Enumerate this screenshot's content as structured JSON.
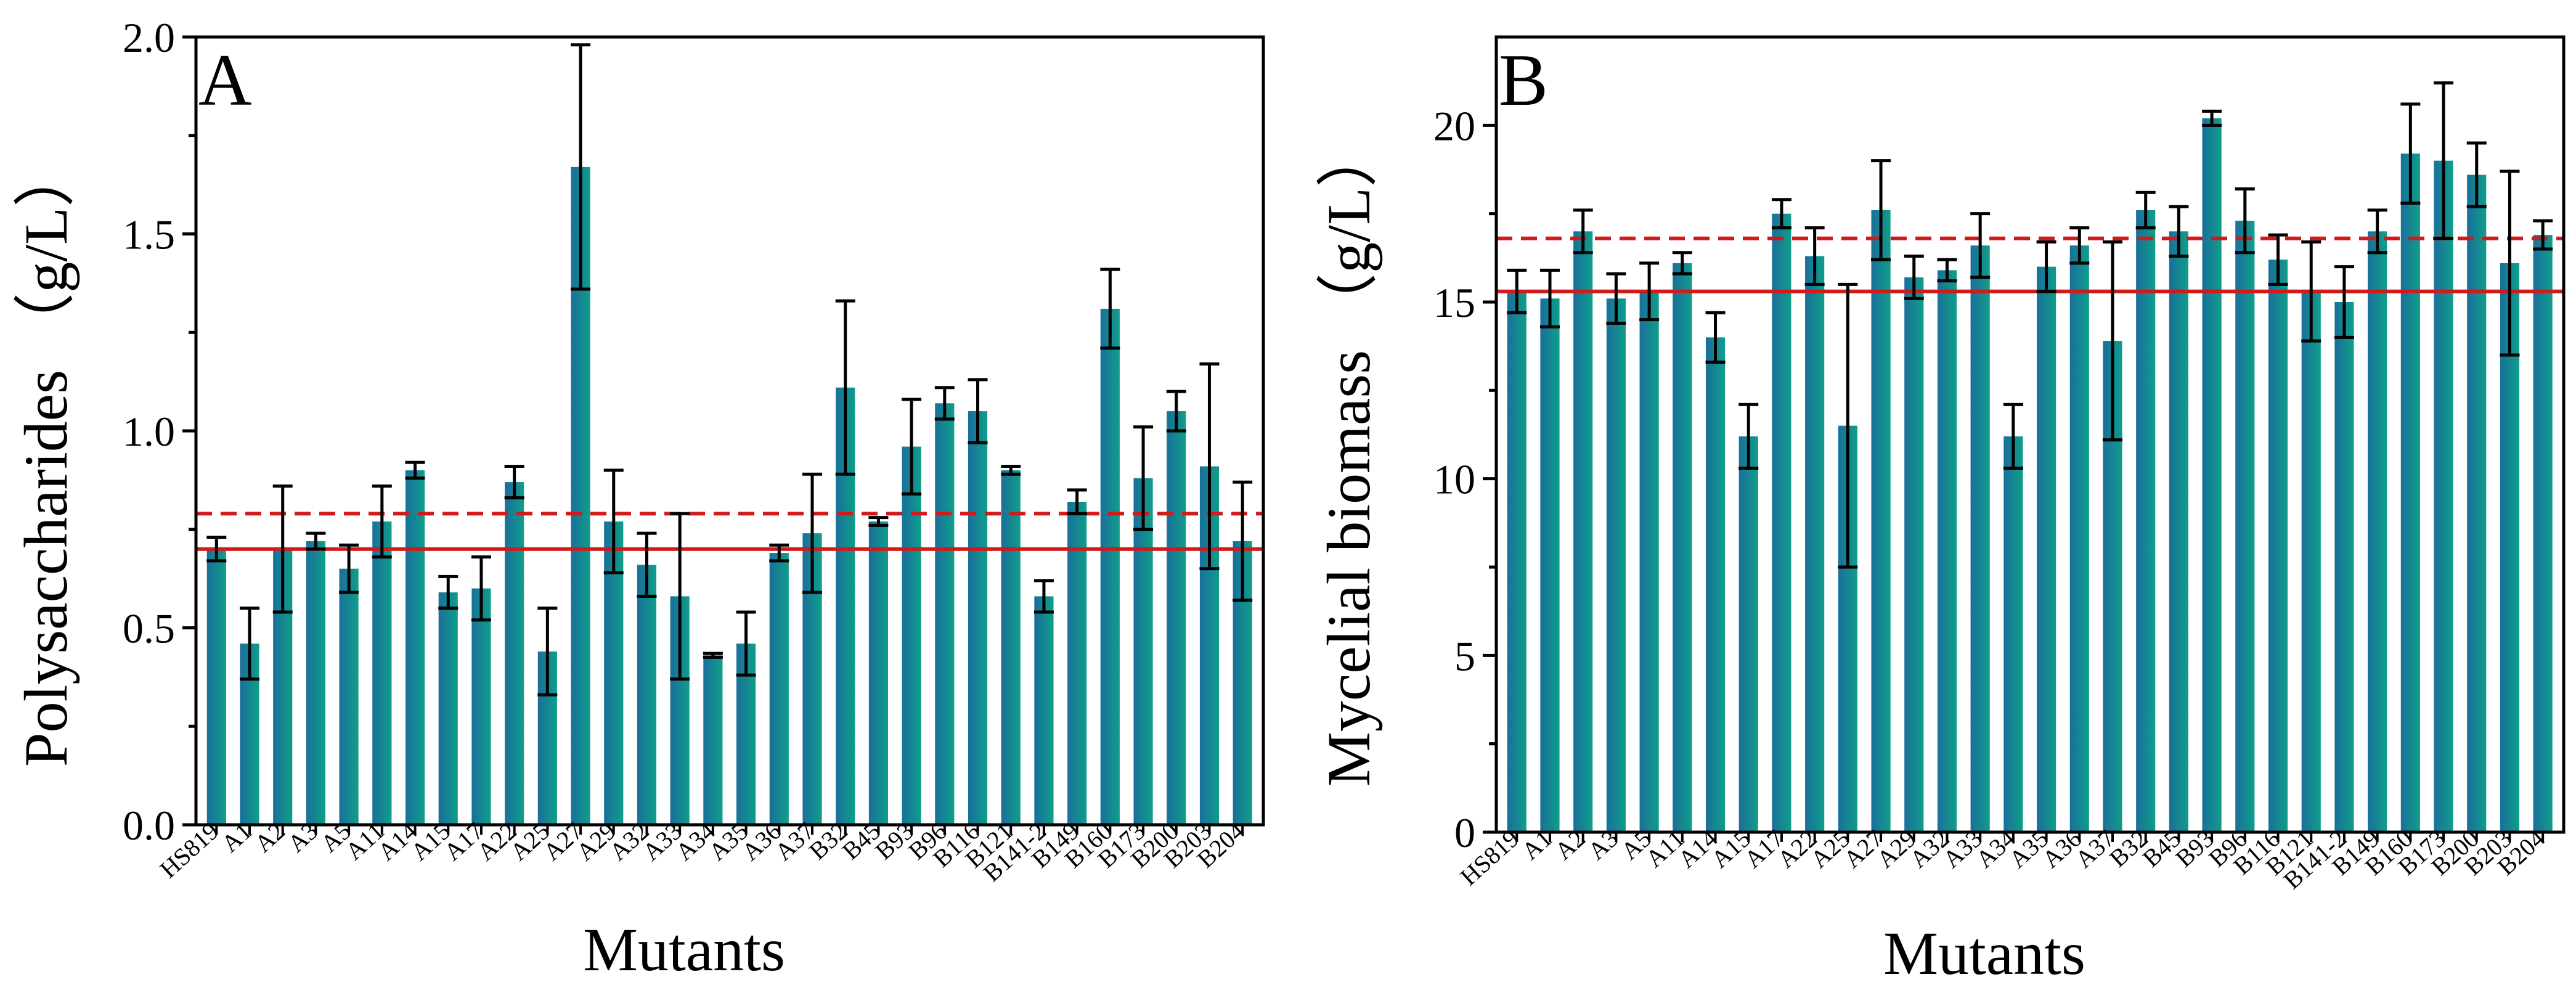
{
  "colors": {
    "bar_left": "#1a6f9a",
    "bar_right": "#0f9e8a",
    "ref_line": "#d11a1a",
    "axis": "#000000"
  },
  "chart_data": [
    {
      "type": "bar",
      "panel_label": "A",
      "ylabel": "Polysaccharides （g/L）",
      "xlabel": "Mutants",
      "ylim": [
        0,
        2.0
      ],
      "yticks": [
        0.0,
        0.5,
        1.0,
        1.5,
        2.0
      ],
      "ytick_labels": [
        "0.0",
        "0.5",
        "1.0",
        "1.5",
        "2.0"
      ],
      "categories": [
        "HS819",
        "A1",
        "A2",
        "A3",
        "A5",
        "A11",
        "A14",
        "A15",
        "A17",
        "A22",
        "A25",
        "A27",
        "A29",
        "A32",
        "A33",
        "A34",
        "A35",
        "A36",
        "A37",
        "B32",
        "B45",
        "B93",
        "B96",
        "B116",
        "B121",
        "B141-2",
        "B149",
        "B160",
        "B173",
        "B200",
        "B203",
        "B204"
      ],
      "values": [
        0.7,
        0.46,
        0.7,
        0.72,
        0.65,
        0.77,
        0.9,
        0.59,
        0.6,
        0.87,
        0.44,
        1.67,
        0.77,
        0.66,
        0.58,
        0.43,
        0.46,
        0.69,
        0.74,
        1.11,
        0.77,
        0.96,
        1.07,
        1.05,
        0.9,
        0.58,
        0.82,
        1.31,
        0.88,
        1.05,
        0.91,
        0.72
      ],
      "errors": [
        0.03,
        0.09,
        0.16,
        0.02,
        0.06,
        0.09,
        0.02,
        0.04,
        0.08,
        0.04,
        0.11,
        0.31,
        0.13,
        0.08,
        0.21,
        0.005,
        0.08,
        0.02,
        0.15,
        0.22,
        0.01,
        0.12,
        0.04,
        0.08,
        0.01,
        0.04,
        0.03,
        0.1,
        0.13,
        0.05,
        0.26,
        0.15
      ],
      "reference_lines": [
        {
          "style": "solid",
          "value": 0.7
        },
        {
          "style": "dashed",
          "value": 0.79
        }
      ]
    },
    {
      "type": "bar",
      "panel_label": "B",
      "ylabel": "Mycelial biomass （g/L）",
      "xlabel": "Mutants",
      "ylim": [
        0,
        22.5
      ],
      "yticks": [
        0,
        5,
        10,
        15,
        20
      ],
      "ytick_labels": [
        "0",
        "5",
        "10",
        "15",
        "20"
      ],
      "categories": [
        "HS819",
        "A1",
        "A2",
        "A3",
        "A5",
        "A11",
        "A14",
        "A15",
        "A17",
        "A22",
        "A25",
        "A27",
        "A29",
        "A32",
        "A33",
        "A34",
        "A35",
        "A36",
        "A37",
        "B32",
        "B45",
        "B93",
        "B96",
        "B116",
        "B121",
        "B141-2",
        "B149",
        "B160",
        "B173",
        "B200",
        "B203",
        "B204"
      ],
      "values": [
        15.3,
        15.1,
        17.0,
        15.1,
        15.3,
        16.1,
        14.0,
        11.2,
        17.5,
        16.3,
        11.5,
        17.6,
        15.7,
        15.9,
        16.6,
        11.2,
        16.0,
        16.6,
        13.9,
        17.6,
        17.0,
        20.2,
        17.3,
        16.2,
        15.3,
        15.0,
        17.0,
        19.2,
        19.0,
        18.6,
        16.1,
        16.9
      ],
      "errors": [
        0.6,
        0.8,
        0.6,
        0.7,
        0.8,
        0.3,
        0.7,
        0.9,
        0.4,
        0.8,
        4.0,
        1.4,
        0.6,
        0.3,
        0.9,
        0.9,
        0.7,
        0.5,
        2.8,
        0.5,
        0.7,
        0.2,
        0.9,
        0.7,
        1.4,
        1.0,
        0.6,
        1.4,
        2.2,
        0.9,
        2.6,
        0.4
      ],
      "reference_lines": [
        {
          "style": "solid",
          "value": 15.3
        },
        {
          "style": "dashed",
          "value": 16.8
        }
      ]
    }
  ]
}
